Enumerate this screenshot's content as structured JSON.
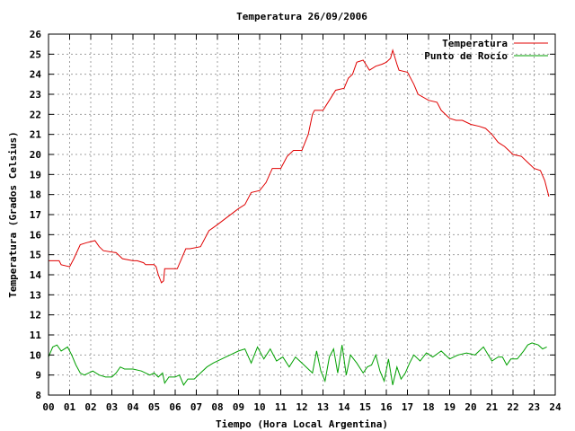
{
  "chart_data": {
    "type": "line",
    "title": "Temperatura 26/09/2006",
    "xlabel": "Tiempo (Hora Local Argentina)",
    "ylabel": "Temperatura (Grados Celsius)",
    "xlim": [
      0,
      24
    ],
    "ylim": [
      8,
      26
    ],
    "grid": true,
    "legend_position": "top-right",
    "x_tick_labels": [
      "00",
      "01",
      "02",
      "03",
      "04",
      "05",
      "06",
      "07",
      "08",
      "09",
      "10",
      "11",
      "12",
      "13",
      "14",
      "15",
      "16",
      "17",
      "18",
      "19",
      "20",
      "21",
      "22",
      "23",
      "24"
    ],
    "y_tick_labels": [
      "8",
      "9",
      "10",
      "11",
      "12",
      "13",
      "14",
      "15",
      "16",
      "17",
      "18",
      "19",
      "20",
      "21",
      "22",
      "23",
      "24",
      "25",
      "26"
    ],
    "series": [
      {
        "name": "Temperatura",
        "color": "#e00000",
        "x": [
          0,
          0.5,
          0.6,
          1.0,
          1.2,
          1.5,
          1.8,
          2.2,
          2.4,
          2.6,
          3.2,
          3.5,
          4.0,
          4.2,
          4.5,
          4.6,
          5.0,
          5.1,
          5.2,
          5.35,
          5.45,
          5.5,
          5.7,
          6.1,
          6.3,
          6.5,
          6.7,
          7.2,
          7.4,
          7.6,
          8.0,
          8.5,
          9.0,
          9.3,
          9.6,
          10.0,
          10.3,
          10.6,
          11.0,
          11.3,
          11.6,
          12.0,
          12.3,
          12.5,
          12.6,
          13.0,
          13.3,
          13.6,
          14.0,
          14.2,
          14.4,
          14.6,
          14.9,
          15.2,
          15.5,
          15.8,
          16.0,
          16.2,
          16.3,
          16.5,
          16.6,
          17.0,
          17.3,
          17.5,
          18.0,
          18.4,
          18.6,
          19.0,
          19.3,
          19.6,
          20.0,
          20.4,
          20.7,
          21.0,
          21.3,
          21.6,
          22.0,
          22.4,
          22.7,
          23.0,
          23.3,
          23.5,
          23.7
        ],
        "values": [
          14.7,
          14.7,
          14.5,
          14.4,
          14.8,
          15.5,
          15.6,
          15.7,
          15.4,
          15.2,
          15.1,
          14.8,
          14.7,
          14.7,
          14.6,
          14.5,
          14.5,
          14.4,
          14.0,
          13.6,
          13.7,
          14.3,
          14.3,
          14.3,
          14.8,
          15.3,
          15.3,
          15.4,
          15.8,
          16.2,
          16.5,
          16.9,
          17.3,
          17.5,
          18.1,
          18.2,
          18.6,
          19.3,
          19.3,
          19.9,
          20.2,
          20.2,
          21.0,
          22.0,
          22.2,
          22.2,
          22.7,
          23.2,
          23.3,
          23.8,
          24.0,
          24.6,
          24.7,
          24.2,
          24.4,
          24.5,
          24.6,
          24.8,
          25.2,
          24.5,
          24.2,
          24.1,
          23.5,
          23.0,
          22.7,
          22.6,
          22.2,
          21.8,
          21.7,
          21.7,
          21.5,
          21.4,
          21.3,
          21.0,
          20.6,
          20.4,
          20.0,
          19.9,
          19.6,
          19.3,
          19.2,
          18.7,
          17.9
        ]
      },
      {
        "name": "Punto de Rocío",
        "color": "#00a000",
        "x": [
          0,
          0.2,
          0.4,
          0.6,
          0.9,
          1.1,
          1.3,
          1.5,
          1.7,
          2.1,
          2.4,
          2.7,
          3.0,
          3.2,
          3.4,
          3.6,
          4.0,
          4.4,
          4.8,
          5.0,
          5.2,
          5.4,
          5.5,
          5.7,
          6.0,
          6.2,
          6.4,
          6.6,
          6.9,
          7.2,
          7.5,
          7.8,
          8.2,
          8.6,
          9.0,
          9.3,
          9.6,
          9.9,
          10.2,
          10.5,
          10.8,
          11.1,
          11.4,
          11.7,
          12.0,
          12.3,
          12.5,
          12.7,
          12.9,
          13.1,
          13.3,
          13.5,
          13.7,
          13.9,
          14.1,
          14.3,
          14.6,
          14.9,
          15.1,
          15.3,
          15.5,
          15.7,
          15.9,
          16.1,
          16.3,
          16.5,
          16.7,
          16.9,
          17.1,
          17.3,
          17.6,
          17.9,
          18.2,
          18.6,
          19.0,
          19.4,
          19.8,
          20.2,
          20.6,
          21.0,
          21.3,
          21.5,
          21.7,
          21.9,
          22.2,
          22.5,
          22.7,
          22.9,
          23.2,
          23.4,
          23.6
        ],
        "values": [
          9.9,
          10.4,
          10.5,
          10.2,
          10.4,
          10.0,
          9.5,
          9.1,
          9.0,
          9.2,
          9.0,
          8.9,
          8.9,
          9.1,
          9.4,
          9.3,
          9.3,
          9.2,
          9.0,
          9.1,
          8.9,
          9.1,
          8.6,
          8.9,
          8.9,
          9.0,
          8.5,
          8.8,
          8.8,
          9.1,
          9.4,
          9.6,
          9.8,
          10.0,
          10.2,
          10.3,
          9.6,
          10.4,
          9.8,
          10.3,
          9.7,
          9.9,
          9.4,
          9.9,
          9.6,
          9.3,
          9.1,
          10.2,
          9.2,
          8.7,
          9.9,
          10.3,
          9.1,
          10.5,
          9.0,
          10.0,
          9.6,
          9.1,
          9.4,
          9.5,
          10.0,
          9.2,
          8.7,
          9.8,
          8.5,
          9.4,
          8.8,
          9.1,
          9.6,
          10.0,
          9.7,
          10.1,
          9.9,
          10.2,
          9.8,
          10.0,
          10.1,
          10.0,
          10.4,
          9.7,
          9.9,
          9.9,
          9.5,
          9.8,
          9.8,
          10.2,
          10.5,
          10.6,
          10.5,
          10.3,
          10.4
        ]
      }
    ]
  }
}
